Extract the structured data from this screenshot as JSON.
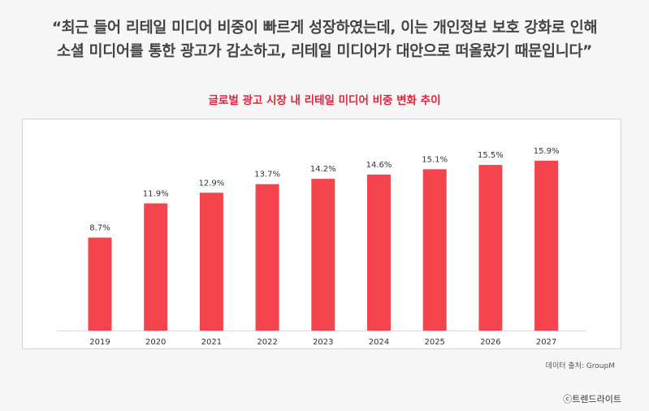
{
  "quote": {
    "line1": "“최근 들어 리테일 미디어 비중이 빠르게 성장하였는데, 이는 개인정보 보호 강화로 인해",
    "line2": "소셜 미디어를 통한 광고가 감소하고, 리테일 미디어가 대안으로 떠올랐기 때문입니다”"
  },
  "source": "데이터 출처: GroupM",
  "credit": "ⓒ트렌드라이트",
  "colors": {
    "bar": "#f4454f",
    "title": "#e0233b"
  },
  "chart_data": {
    "type": "bar",
    "title": "글로벌 광고 시장 내 리테일 미디어 비중 변화 추이",
    "categories": [
      "2019",
      "2020",
      "2021",
      "2022",
      "2023",
      "2024",
      "2025",
      "2026",
      "2027"
    ],
    "values": [
      8.7,
      11.9,
      12.9,
      13.7,
      14.2,
      14.6,
      15.1,
      15.5,
      15.9
    ],
    "value_labels": [
      "8.7%",
      "11.9%",
      "12.9%",
      "13.7%",
      "14.2%",
      "14.6%",
      "15.1%",
      "15.5%",
      "15.9%"
    ],
    "xlabel": "",
    "ylabel": "",
    "ylim": [
      0,
      19
    ],
    "grid": false,
    "legend": "none"
  }
}
